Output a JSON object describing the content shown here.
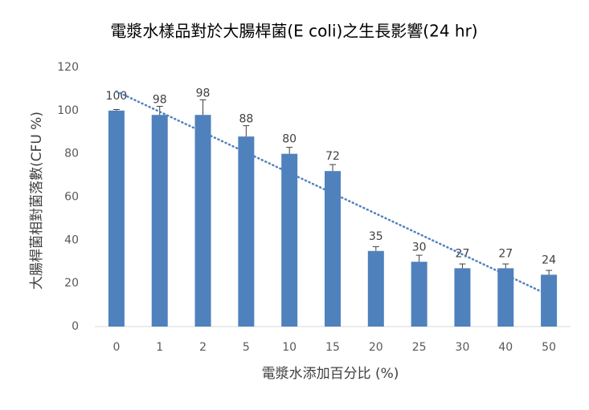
{
  "chart_data": {
    "type": "bar",
    "title": "電漿水樣品對於大腸桿菌(E coli)之生長影響(24 hr)",
    "x_label": "電漿水添加百分比 (%)",
    "y_label": "大腸桿菌相對菌落數(CFU %)",
    "categories": [
      "0",
      "1",
      "2",
      "5",
      "10",
      "15",
      "20",
      "25",
      "30",
      "40",
      "50"
    ],
    "values": [
      100,
      98,
      98,
      88,
      80,
      72,
      35,
      30,
      27,
      27,
      24
    ],
    "errors": [
      0.5,
      4,
      7,
      5,
      3,
      3,
      2,
      3,
      2,
      2,
      2
    ],
    "color": "#4f81bd",
    "trendline": "linear",
    "trendline_color": "#4f81bd",
    "ylim": [
      0,
      120
    ],
    "yticks": [
      0,
      20,
      40,
      60,
      80,
      100,
      120
    ],
    "grid": false
  }
}
